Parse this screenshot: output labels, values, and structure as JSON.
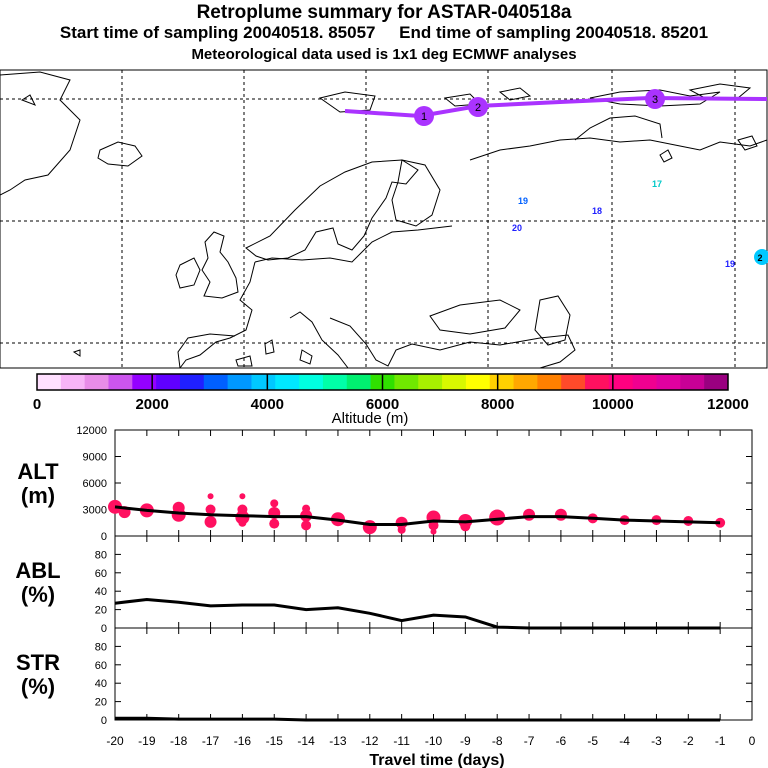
{
  "header": {
    "title": "Retroplume summary for ASTAR-040518a",
    "times": "Start time of sampling 20040518. 85057     End time of sampling 20040518. 85201",
    "met": "Meteorological data used is 1x1 deg ECMWF analyses"
  },
  "map": {
    "trajectory_labels": [
      "1",
      "2",
      "3"
    ],
    "cluster_labels": [
      "17",
      "19",
      "18",
      "20",
      "19",
      "2"
    ]
  },
  "colorbar": {
    "ticks": [
      "0",
      "2000",
      "4000",
      "6000",
      "8000",
      "10000",
      "12000"
    ],
    "label": "Altitude (m)",
    "colors": [
      "#ffe0ff",
      "#f7b4f7",
      "#e88ce8",
      "#cc55ee",
      "#9400ff",
      "#6000ff",
      "#2020ff",
      "#0060ff",
      "#0098ff",
      "#00c8ff",
      "#00e8ff",
      "#00ffe0",
      "#00ffa8",
      "#00f070",
      "#30e000",
      "#70e800",
      "#a8f000",
      "#d8f800",
      "#ffff00",
      "#ffd000",
      "#ffa800",
      "#ff8000",
      "#ff4a2a",
      "#ff1060",
      "#ff0080",
      "#f00090",
      "#e000a0",
      "#c80096",
      "#9a0080"
    ]
  },
  "chart_data": [
    {
      "type": "line",
      "name": "ALT",
      "ylabel": "ALT\n(m)",
      "ylim": [
        0,
        12000
      ],
      "yticks": [
        "0",
        "3000",
        "6000",
        "9000",
        "12000"
      ],
      "x": [
        -20,
        -19,
        -18,
        -17,
        -16,
        -15,
        -14,
        -13,
        -12,
        -11,
        -10,
        -9,
        -8,
        -7,
        -6,
        -5,
        -4,
        -3,
        -2,
        -1
      ],
      "values": [
        3300,
        2900,
        2600,
        2400,
        2300,
        2200,
        2200,
        1800,
        1300,
        1300,
        1700,
        1600,
        1900,
        2200,
        2200,
        2000,
        1800,
        1700,
        1600,
        1500
      ],
      "dots": [
        [
          -20,
          3300,
          7
        ],
        [
          -19.7,
          2700,
          6
        ],
        [
          -19,
          2900,
          7
        ],
        [
          -18,
          3200,
          6
        ],
        [
          -18,
          2400,
          7
        ],
        [
          -17,
          4500,
          3
        ],
        [
          -17,
          3000,
          5
        ],
        [
          -17,
          1600,
          6
        ],
        [
          -16,
          4500,
          3
        ],
        [
          -16,
          3000,
          5
        ],
        [
          -16,
          2100,
          7
        ],
        [
          -16,
          1500,
          4
        ],
        [
          -15,
          3700,
          4
        ],
        [
          -15,
          2600,
          6
        ],
        [
          -15,
          1400,
          5
        ],
        [
          -14,
          3100,
          4
        ],
        [
          -14,
          2300,
          6
        ],
        [
          -14,
          1200,
          5
        ],
        [
          -13,
          1900,
          7
        ],
        [
          -12,
          1000,
          7
        ],
        [
          -11,
          1500,
          6
        ],
        [
          -11,
          700,
          4
        ],
        [
          -10,
          2100,
          7
        ],
        [
          -10,
          1200,
          5
        ],
        [
          -10,
          500,
          3
        ],
        [
          -9,
          1700,
          7
        ],
        [
          -9,
          1100,
          5
        ],
        [
          -8,
          2100,
          8
        ],
        [
          -7,
          2400,
          6
        ],
        [
          -6,
          2400,
          6
        ],
        [
          -5,
          2000,
          5
        ],
        [
          -4,
          1800,
          5
        ],
        [
          -3,
          1800,
          5
        ],
        [
          -2,
          1700,
          5
        ],
        [
          -1,
          1500,
          5
        ]
      ]
    },
    {
      "type": "line",
      "name": "ABL",
      "ylabel": "ABL\n(%)",
      "ylim": [
        0,
        100
      ],
      "yticks": [
        "0",
        "20",
        "40",
        "60",
        "80"
      ],
      "x": [
        -20,
        -19,
        -18,
        -17,
        -16,
        -15,
        -14,
        -13,
        -12,
        -11,
        -10,
        -9,
        -8,
        -7,
        -6,
        -5,
        -4,
        -3,
        -2,
        -1
      ],
      "values": [
        27,
        31,
        28,
        24,
        25,
        25,
        20,
        22,
        16,
        8,
        14,
        12,
        1,
        0,
        0,
        0,
        0,
        0,
        0,
        0
      ]
    },
    {
      "type": "line",
      "name": "STR",
      "ylabel": "STR\n(%)",
      "ylim": [
        0,
        100
      ],
      "yticks": [
        "0",
        "20",
        "40",
        "60",
        "80"
      ],
      "x": [
        -20,
        -19,
        -18,
        -17,
        -16,
        -15,
        -14,
        -13,
        -12,
        -11,
        -10,
        -9,
        -8,
        -7,
        -6,
        -5,
        -4,
        -3,
        -2,
        -1
      ],
      "values": [
        2,
        2,
        1,
        1,
        1,
        1,
        0,
        0,
        0,
        0,
        0,
        0,
        0,
        0,
        0,
        0,
        0,
        0,
        0,
        0
      ]
    }
  ],
  "xaxis": {
    "ticks": [
      "-20",
      "-19",
      "-18",
      "-17",
      "-16",
      "-15",
      "-14",
      "-13",
      "-12",
      "-11",
      "-10",
      "-9",
      "-8",
      "-7",
      "-6",
      "-5",
      "-4",
      "-3",
      "-2",
      "-1",
      "0"
    ],
    "label": "Travel time (days)"
  }
}
